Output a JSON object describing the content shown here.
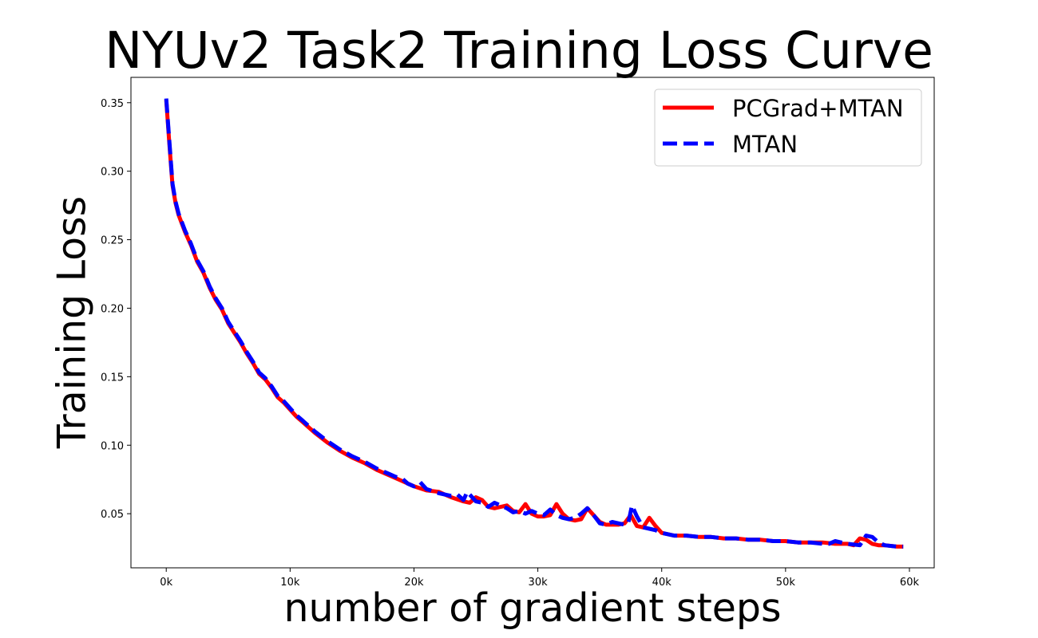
{
  "chart_data": {
    "type": "line",
    "title": "NYUv2 Task2 Training Loss Curve",
    "xlabel": "number of gradient steps",
    "ylabel": "Training Loss",
    "xlim": [
      -2850,
      62000
    ],
    "ylim": [
      0.0105,
      0.3685
    ],
    "x_ticks": [
      0,
      10000,
      20000,
      30000,
      40000,
      50000,
      60000
    ],
    "x_tick_labels": [
      "0k",
      "10k",
      "20k",
      "30k",
      "40k",
      "50k",
      "60k"
    ],
    "y_ticks": [
      0.05,
      0.1,
      0.15,
      0.2,
      0.25,
      0.3,
      0.35
    ],
    "y_tick_labels": [
      "0.05",
      "0.10",
      "0.15",
      "0.20",
      "0.25",
      "0.30",
      "0.35"
    ],
    "grid": false,
    "legend_position": "top-right",
    "series": [
      {
        "name": "PCGrad+MTAN",
        "color": "#ff0000",
        "style": "solid",
        "x": [
          0,
          250,
          500,
          750,
          1000,
          1500,
          2000,
          2500,
          3000,
          3500,
          4000,
          4500,
          5000,
          5500,
          6000,
          6500,
          7000,
          7500,
          8000,
          8500,
          9000,
          9500,
          10000,
          10500,
          11000,
          11500,
          12000,
          13000,
          14000,
          15000,
          16000,
          17000,
          18000,
          19000,
          20000,
          21000,
          22000,
          22500,
          23000,
          24000,
          24500,
          25000,
          25500,
          26000,
          26500,
          27000,
          27500,
          28000,
          28500,
          29000,
          29500,
          30000,
          30500,
          31000,
          31500,
          32000,
          32500,
          33000,
          33500,
          34000,
          34500,
          35000,
          35500,
          36000,
          36500,
          37000,
          37500,
          38000,
          38500,
          39000,
          39500,
          40000,
          41000,
          42000,
          43000,
          44000,
          45000,
          46000,
          47000,
          48000,
          49000,
          50000,
          51000,
          52000,
          53000,
          54000,
          55000,
          55500,
          56000,
          56500,
          57000,
          57500,
          58000,
          59000,
          59500
        ],
        "y": [
          0.352,
          0.32,
          0.29,
          0.277,
          0.268,
          0.256,
          0.246,
          0.234,
          0.226,
          0.215,
          0.206,
          0.199,
          0.189,
          0.182,
          0.175,
          0.167,
          0.16,
          0.152,
          0.148,
          0.142,
          0.135,
          0.131,
          0.126,
          0.121,
          0.117,
          0.113,
          0.109,
          0.102,
          0.096,
          0.091,
          0.087,
          0.082,
          0.078,
          0.074,
          0.07,
          0.067,
          0.066,
          0.064,
          0.062,
          0.059,
          0.058,
          0.062,
          0.06,
          0.055,
          0.054,
          0.055,
          0.056,
          0.052,
          0.051,
          0.057,
          0.05,
          0.048,
          0.048,
          0.049,
          0.057,
          0.05,
          0.046,
          0.045,
          0.046,
          0.054,
          0.049,
          0.044,
          0.042,
          0.042,
          0.042,
          0.043,
          0.049,
          0.041,
          0.04,
          0.047,
          0.041,
          0.036,
          0.034,
          0.034,
          0.033,
          0.033,
          0.032,
          0.032,
          0.031,
          0.031,
          0.03,
          0.03,
          0.029,
          0.029,
          0.029,
          0.028,
          0.028,
          0.027,
          0.032,
          0.031,
          0.028,
          0.027,
          0.027,
          0.026,
          0.026
        ]
      },
      {
        "name": "MTAN",
        "color": "#0000ff",
        "style": "dashed",
        "x": [
          0,
          250,
          500,
          750,
          1000,
          1500,
          2000,
          2500,
          3000,
          3500,
          4000,
          4500,
          5000,
          5500,
          6000,
          6500,
          7000,
          7500,
          8000,
          8500,
          9000,
          9500,
          10000,
          10500,
          11000,
          11500,
          12000,
          13000,
          14000,
          15000,
          16000,
          17000,
          18000,
          18500,
          19000,
          19500,
          20000,
          20500,
          21000,
          22000,
          23000,
          23500,
          24000,
          24300,
          24600,
          25000,
          25500,
          26000,
          26500,
          27000,
          27500,
          28000,
          28500,
          29000,
          29500,
          30000,
          30500,
          31000,
          31500,
          32000,
          32500,
          33000,
          33500,
          34000,
          34500,
          35000,
          35500,
          36000,
          36500,
          37000,
          37300,
          37600,
          38000,
          38500,
          39000,
          39500,
          40000,
          41000,
          42000,
          43000,
          44000,
          45000,
          46000,
          47000,
          48000,
          49000,
          50000,
          51000,
          52000,
          53000,
          53500,
          54000,
          55000,
          56000,
          56500,
          57000,
          57500,
          58000,
          59000,
          59500
        ],
        "y": [
          0.353,
          0.322,
          0.291,
          0.278,
          0.269,
          0.257,
          0.247,
          0.235,
          0.227,
          0.216,
          0.207,
          0.2,
          0.19,
          0.183,
          0.176,
          0.168,
          0.161,
          0.153,
          0.149,
          0.143,
          0.136,
          0.132,
          0.127,
          0.122,
          0.118,
          0.114,
          0.11,
          0.103,
          0.097,
          0.092,
          0.088,
          0.083,
          0.079,
          0.077,
          0.076,
          0.072,
          0.07,
          0.073,
          0.068,
          0.065,
          0.063,
          0.064,
          0.06,
          0.066,
          0.063,
          0.059,
          0.058,
          0.055,
          0.058,
          0.056,
          0.054,
          0.051,
          0.052,
          0.05,
          0.052,
          0.05,
          0.049,
          0.053,
          0.049,
          0.047,
          0.046,
          0.047,
          0.05,
          0.054,
          0.049,
          0.043,
          0.042,
          0.044,
          0.043,
          0.042,
          0.043,
          0.056,
          0.048,
          0.04,
          0.039,
          0.038,
          0.036,
          0.034,
          0.034,
          0.033,
          0.033,
          0.032,
          0.032,
          0.031,
          0.031,
          0.03,
          0.03,
          0.029,
          0.029,
          0.028,
          0.028,
          0.03,
          0.028,
          0.027,
          0.034,
          0.033,
          0.029,
          0.027,
          0.026,
          0.026
        ]
      }
    ]
  }
}
